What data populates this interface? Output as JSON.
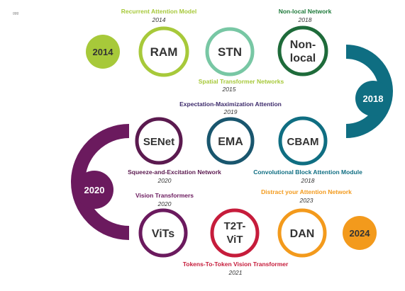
{
  "corner_mark": "ggg",
  "years": {
    "y2014": "2014",
    "y2018": "2018",
    "y2020": "2020",
    "y2024": "2024"
  },
  "models": {
    "ram": {
      "node": "RAM",
      "title": "Recurrent Attention Model",
      "year": "2014"
    },
    "stn": {
      "node": "STN",
      "title": "Spatial Transformer Networks",
      "year": "2015"
    },
    "nonlocal": {
      "node_line1": "Non-",
      "node_line2": "local",
      "title": "Non-local Network",
      "year": "2018"
    },
    "ema": {
      "node": "EMA",
      "title": "Expectation-Maximization Attention",
      "year": "2019"
    },
    "senet": {
      "node": "SENet",
      "title": "Squeeze-and-Excitation Network",
      "year": "2020"
    },
    "cbam": {
      "node": "CBAM",
      "title": "Convolutional Block Attention Module",
      "year": "2018"
    },
    "vits": {
      "node": "ViTs",
      "title": "Vision Transformers",
      "year": "2020"
    },
    "t2t": {
      "node_line1": "T2T-",
      "node_line2": "ViT",
      "title": "Tokens-To-Token Vision Transformer",
      "year": "2021"
    },
    "dan": {
      "node": "DAN",
      "title": "Distract your Attention Network",
      "year": "2023"
    }
  },
  "colors": {
    "lane_start": "#f3c416",
    "lane_green": "#a7c93a",
    "lane_teal": "#0f6e82",
    "lane_purple": "#6b1a5e",
    "lane_red": "#c61c3b",
    "lane_end": "#f3c416",
    "ram_border": "#a7c93a",
    "stn_border": "#78c7a4",
    "nonlocal_border": "#1e6b3a",
    "ema_border": "#19566e",
    "senet_border": "#5b1a4f",
    "cbam_border": "#0f6e82",
    "vits_border": "#6b1a5e",
    "t2t_border": "#c61c3b",
    "dan_border": "#f39a1c",
    "ram_label": "#a7c93a",
    "stn_label": "#a7c93a",
    "nonlocal_label": "#1e7a3a",
    "ema_label": "#3c2a6b",
    "senet_label": "#5b1a4f",
    "cbam_label": "#0f6e82",
    "vits_label": "#6b1a5e",
    "t2t_label": "#c61c3b",
    "dan_label": "#f39a1c"
  }
}
